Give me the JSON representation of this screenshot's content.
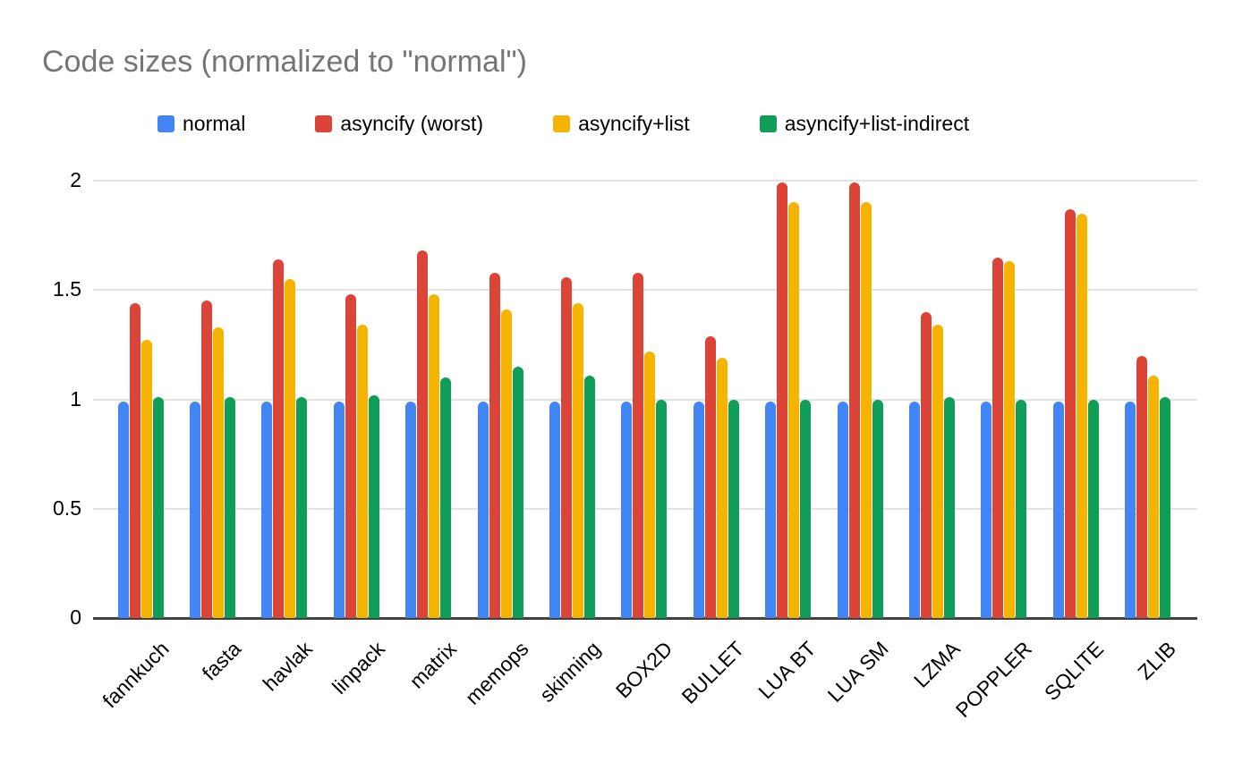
{
  "title": "Code sizes (normalized to \"normal\")",
  "colors": {
    "title_text": "#757575",
    "axis_text": "#000000",
    "gridline": "#e3e3e3",
    "baseline": "#424242",
    "background": "#ffffff"
  },
  "chart_data": {
    "type": "bar",
    "title": "Code sizes (normalized to \"normal\")",
    "xlabel": "",
    "ylabel": "",
    "ylim": [
      0,
      2.04
    ],
    "grid": true,
    "legend_position": "top",
    "y_ticks": [
      "0",
      "0.5",
      "1",
      "1.5",
      "2"
    ],
    "categories": [
      "fannkuch",
      "fasta",
      "havlak",
      "linpack",
      "matrix",
      "memops",
      "skinning",
      "BOX2D",
      "BULLET",
      "LUA BT",
      "LUA SM",
      "LZMA",
      "POPPLER",
      "SQLITE",
      "ZLIB"
    ],
    "series": [
      {
        "name": "normal",
        "color": "#4285F4",
        "values": [
          0.99,
          0.99,
          0.99,
          0.99,
          0.99,
          0.99,
          0.99,
          0.99,
          0.99,
          0.99,
          0.99,
          0.99,
          0.99,
          0.99,
          0.99
        ]
      },
      {
        "name": "asyncify (worst)",
        "color": "#DB4437",
        "values": [
          1.44,
          1.45,
          1.64,
          1.48,
          1.68,
          1.58,
          1.56,
          1.58,
          1.29,
          1.99,
          1.99,
          1.4,
          1.65,
          1.87,
          1.2
        ]
      },
      {
        "name": "asyncify+list",
        "color": "#F4B400",
        "values": [
          1.27,
          1.33,
          1.55,
          1.34,
          1.48,
          1.41,
          1.44,
          1.22,
          1.19,
          1.9,
          1.9,
          1.34,
          1.63,
          1.85,
          1.11
        ]
      },
      {
        "name": "asyncify+list-indirect",
        "color": "#0F9D58",
        "values": [
          1.01,
          1.01,
          1.01,
          1.02,
          1.1,
          1.15,
          1.11,
          1.0,
          1.0,
          1.0,
          1.0,
          1.01,
          1.0,
          1.0,
          1.01
        ]
      }
    ]
  }
}
